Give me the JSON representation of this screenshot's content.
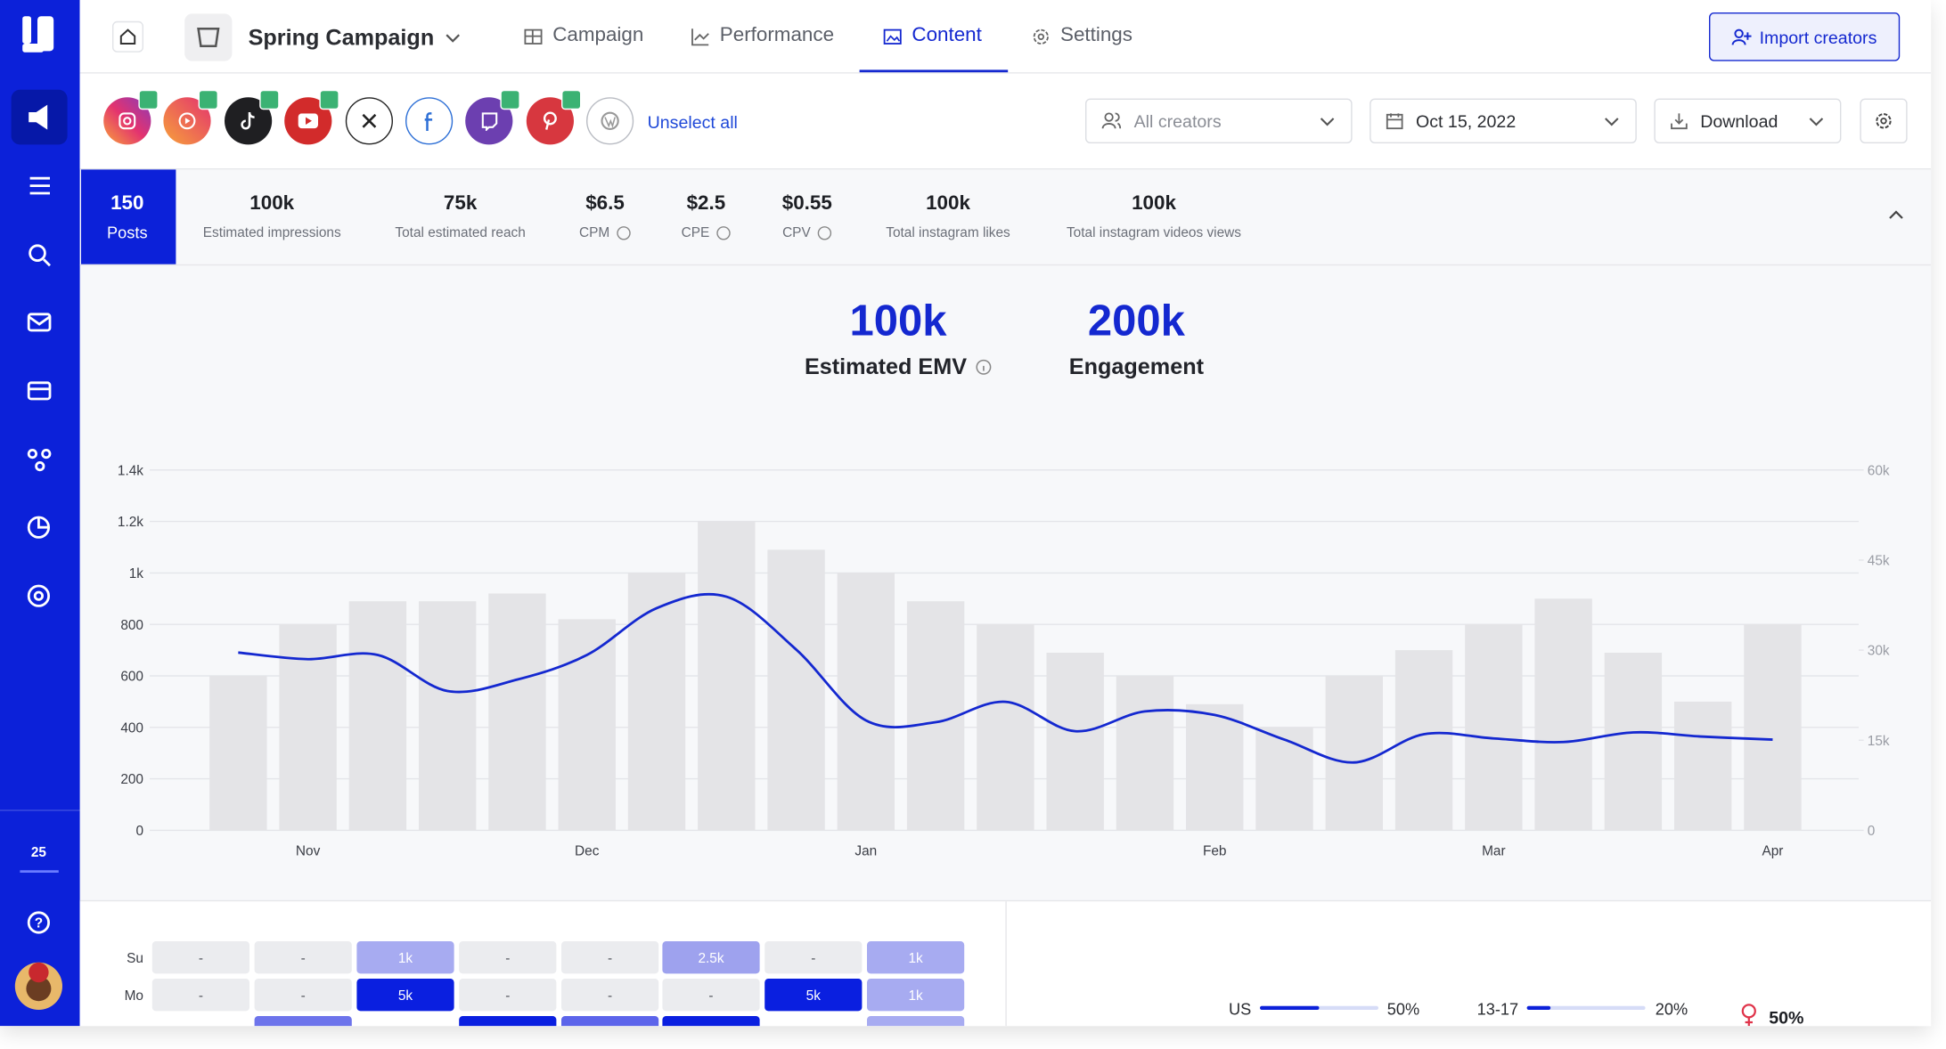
{
  "sidebar": {
    "badge": "25"
  },
  "header": {
    "campaign": "Spring Campaign",
    "tabs": [
      "Campaign",
      "Performance",
      "Content",
      "Settings"
    ],
    "button": "Import creators"
  },
  "filters": {
    "unselect": "Unselect all",
    "creators": "All creators",
    "date": "Oct 15, 2022",
    "download": "Download"
  },
  "stats": [
    {
      "value": "150",
      "label": "Posts"
    },
    {
      "value": "100k",
      "label": "Estimated impressions"
    },
    {
      "value": "75k",
      "label": "Total estimated reach"
    },
    {
      "value": "$6.5",
      "label": "CPM"
    },
    {
      "value": "$2.5",
      "label": "CPE"
    },
    {
      "value": "$0.55",
      "label": "CPV"
    },
    {
      "value": "100k",
      "label": "Total instagram likes"
    },
    {
      "value": "100k",
      "label": "Total instagram videos views"
    }
  ],
  "kpis": [
    {
      "value": "100k",
      "label": "Estimated EMV"
    },
    {
      "value": "200k",
      "label": "Engagement"
    }
  ],
  "chart_data": {
    "type": "bar-line",
    "categories": [
      null,
      "Nov",
      null,
      null,
      null,
      "Dec",
      null,
      null,
      null,
      "Jan",
      null,
      null,
      null,
      null,
      "Feb",
      null,
      null,
      null,
      "Mar",
      null,
      null,
      null,
      "Apr"
    ],
    "series": [
      {
        "type": "bar",
        "color": "#e4e4e7",
        "values": [
          600,
          800,
          890,
          890,
          920,
          820,
          1000,
          1200,
          1090,
          1000,
          890,
          800,
          690,
          600,
          490,
          400,
          600,
          700,
          800,
          900,
          690,
          500,
          800
        ]
      },
      {
        "type": "line",
        "axis": "y2",
        "color": "#1428d0",
        "values": [
          29600,
          28500,
          29200,
          23200,
          25100,
          29200,
          37000,
          38900,
          30100,
          18300,
          18000,
          21400,
          16500,
          19800,
          19200,
          15100,
          11300,
          16000,
          15300,
          14700,
          16300,
          15600,
          15100
        ]
      }
    ],
    "ylim": [
      0,
      1400
    ],
    "yticks": [
      0,
      200,
      400,
      600,
      800,
      {
        "value": 1000,
        "label": "1k"
      },
      {
        "value": 1200,
        "label": "1.2k"
      },
      {
        "value": 1400,
        "label": "1.4k"
      }
    ],
    "y2lim": [
      0,
      60000
    ],
    "y2ticks": [
      0,
      {
        "value": 15000,
        "label": "15k"
      },
      {
        "value": 30000,
        "label": "30k"
      },
      {
        "value": 45000,
        "label": "45k"
      },
      {
        "value": 60000,
        "label": "60k"
      }
    ],
    "grid": true
  },
  "heatmap": {
    "rows": [
      {
        "day": "Su",
        "cells": [
          {
            "text": "-",
            "color": "#ebecef"
          },
          {
            "text": "-",
            "color": "#ebecef"
          },
          {
            "text": "1k",
            "color": "#a7abf1"
          },
          {
            "text": "-",
            "color": "#ebecef"
          },
          {
            "text": "-",
            "color": "#ebecef"
          },
          {
            "text": "2.5k",
            "color": "#9ea2ee"
          },
          {
            "text": "-",
            "color": "#ebecef"
          },
          {
            "text": "1k",
            "color": "#a7abf1"
          }
        ]
      },
      {
        "day": "Mo",
        "cells": [
          {
            "text": "-",
            "color": "#ebecef"
          },
          {
            "text": "-",
            "color": "#ebecef"
          },
          {
            "text": "5k",
            "color": "#0a1fe0"
          },
          {
            "text": "-",
            "color": "#ebecef"
          },
          {
            "text": "-",
            "color": "#ebecef"
          },
          {
            "text": "-",
            "color": "#ebecef"
          },
          {
            "text": "5k",
            "color": "#0a1fe0"
          },
          {
            "text": "1k",
            "color": "#a7abf1"
          }
        ]
      }
    ]
  },
  "demographics": [
    {
      "label": "US",
      "value": 50,
      "value_label": "50%"
    },
    {
      "label": "13-17",
      "value": 20,
      "value_label": "20%"
    }
  ],
  "gender": {
    "value": 50,
    "value_label": "50%"
  }
}
